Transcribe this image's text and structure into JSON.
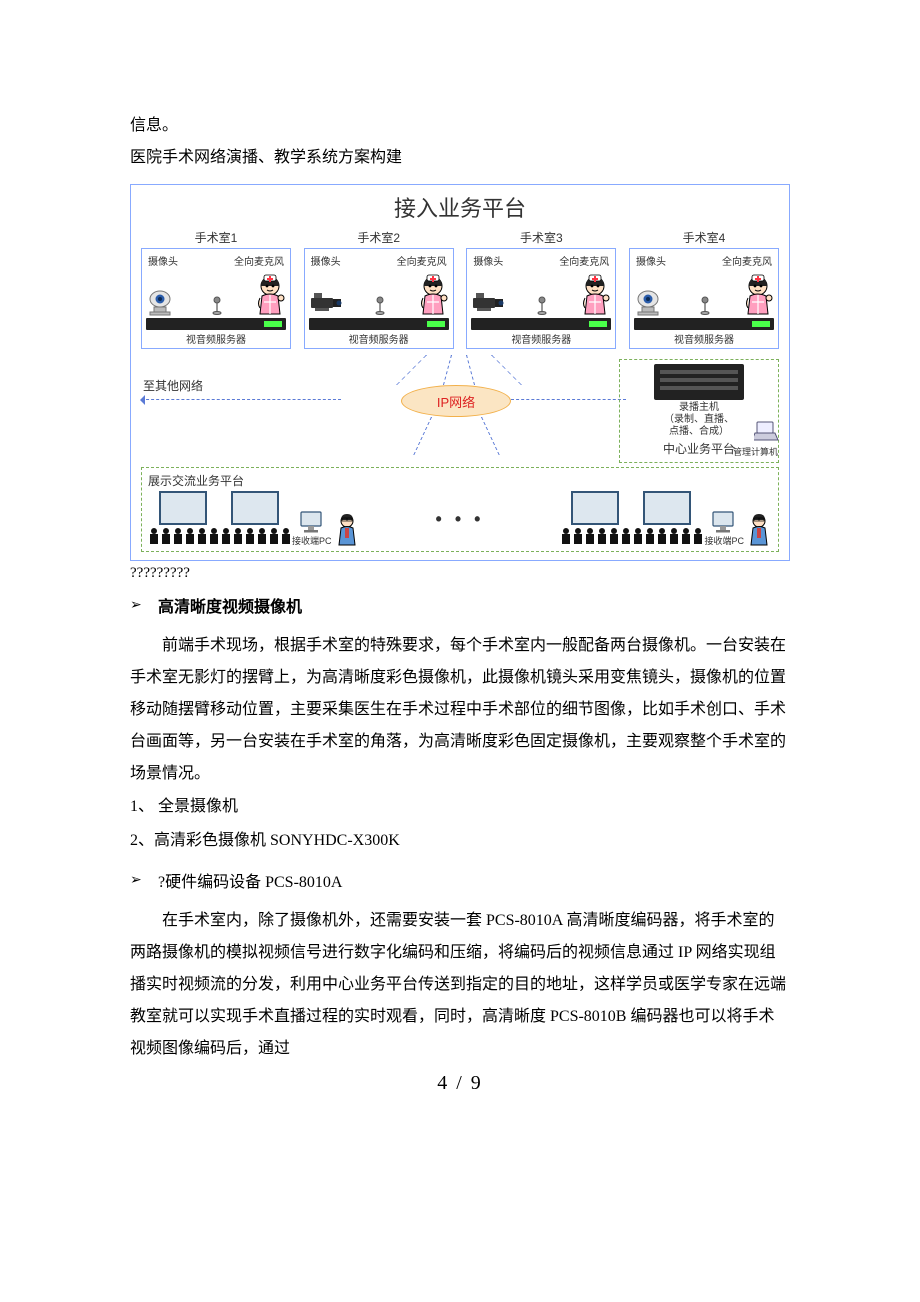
{
  "intro": {
    "line1": "信息。",
    "line2": "医院手术网络演播、教学系统方案构建"
  },
  "diagram": {
    "title": "接入业务平台",
    "rooms": [
      {
        "title": "手术室1",
        "label_cam": "摄像头",
        "label_mic": "全向麦克风",
        "server_label": "视音频服务器",
        "cam_type": "dome"
      },
      {
        "title": "手术室2",
        "label_cam": "摄像头",
        "label_mic": "全向麦克风",
        "server_label": "视音频服务器",
        "cam_type": "pro"
      },
      {
        "title": "手术室3",
        "label_cam": "摄像头",
        "label_mic": "全向麦克风",
        "server_label": "视音频服务器",
        "cam_type": "pro"
      },
      {
        "title": "手术室4",
        "label_cam": "摄像头",
        "label_mic": "全向麦克风",
        "server_label": "视音频服务器",
        "cam_type": "dome"
      }
    ],
    "ip_label": "IP网络",
    "to_other": "至其他网络",
    "center": {
      "host_line1": "录播主机",
      "host_line2": "（录制、直播、",
      "host_line3": "点播、合成）",
      "mgmt_label": "管理计算机",
      "platform_label": "中心业务平台"
    },
    "bottom": {
      "title": "展示交流业务平台",
      "recv_label": "接收端PC",
      "dots": "• • •"
    },
    "colors": {
      "outer_border": "#88aaff",
      "dash_border": "#7cb15a",
      "dash_line": "#5a7ad6",
      "ip_fill": "#fbe5c3",
      "ip_border": "#f2b04a",
      "ip_text": "#d22222",
      "nurse_pink": "#ff7faa",
      "nurse_skin": "#ffe0c4",
      "nurse_hat": "#ffffff",
      "nurse_cross": "#ff3344",
      "cam_body": "#6a6a6a",
      "screen_border": "#335577"
    }
  },
  "qmarks": "?????????",
  "section1": {
    "heading": "高清晰度视频摄像机",
    "para": "前端手术现场，根据手术室的特殊要求，每个手术室内一般配备两台摄像机。一台安装在手术室无影灯的摆臂上，为高清晰度彩色摄像机，此摄像机镜头采用变焦镜头，摄像机的位置移动随摆臂移动位置，主要采集医生在手术过程中手术部位的细节图像，比如手术创口、手术台画面等，另一台安装在手术室的角落，为高清晰度彩色固定摄像机，主要观察整个手术室的场景情况。",
    "item1": "1、 全景摄像机",
    "item2": "2、高清彩色摄像机 SONYHDC-X300K"
  },
  "section2": {
    "heading": "?硬件编码设备 PCS-8010A",
    "para": "在手术室内，除了摄像机外，还需要安装一套 PCS-8010A 高清晰度编码器，将手术室的两路摄像机的模拟视频信号进行数字化编码和压缩，将编码后的视频信息通过 IP 网络实现组播实时视频流的分发，利用中心业务平台传送到指定的目的地址，这样学员或医学专家在远端教室就可以实现手术直播过程的实时观看，同时，高清晰度 PCS-8010B 编码器也可以将手术视频图像编码后，通过"
  },
  "page_number": "4 / 9"
}
